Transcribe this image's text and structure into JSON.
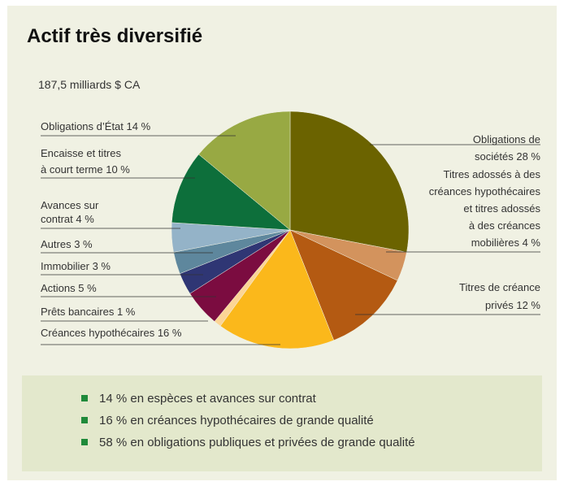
{
  "chart_data": {
    "type": "pie",
    "title": "Actif très diversifié",
    "subtitle": "187,5 milliards $ CA",
    "categories": [
      [
        "Obligations de",
        "sociétés"
      ],
      [
        "Titres adossés à des",
        "créances hypothécaires",
        "et titres adossés",
        "à des créances",
        "mobilières"
      ],
      [
        "Titres de créance",
        "privés"
      ],
      [
        "Créances hypothécaires"
      ],
      [
        "Prêts bancaires"
      ],
      [
        "Actions "
      ],
      [
        "Immobilier"
      ],
      [
        "Autres"
      ],
      [
        "Avances sur",
        "contrat"
      ],
      [
        "Encaisse et titres",
        "à court terme"
      ],
      [
        "Obligations d’État"
      ]
    ],
    "values": [
      28,
      4,
      12,
      16,
      1,
      5,
      3,
      3,
      4,
      10,
      14
    ],
    "value_labels": [
      "28 %",
      "4 %",
      "12 %",
      "16 %",
      "1 %",
      "5 %",
      "3 %",
      "3 %",
      "4 %",
      "10 %",
      "14 %"
    ],
    "colors": [
      "#6b6300",
      "#d3935d",
      "#b45a12",
      "#fbb81b",
      "#fcd596",
      "#7b0c40",
      "#2f3674",
      "#5e879d",
      "#94b3c8",
      "#0d6f3b",
      "#98a943"
    ],
    "notes": [
      "14 % en espèces et avances sur contrat",
      "16 % en créances hypothécaires de grande qualité",
      "58 % en obligations publiques et privées de grande qualité"
    ]
  }
}
